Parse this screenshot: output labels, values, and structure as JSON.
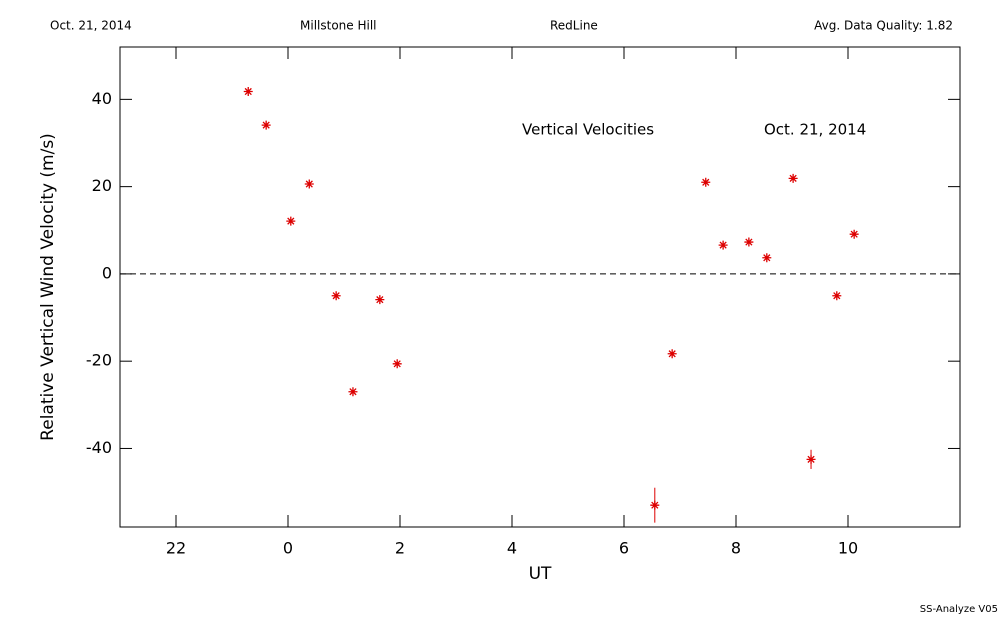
{
  "header": {
    "date": "Oct. 21, 2014",
    "site": "Millstone Hill",
    "instrument": "RedLine",
    "quality": "Avg. Data Quality: 1.82"
  },
  "footer": "SS-Analyze V05",
  "chart_data": {
    "type": "scatter",
    "xlabel": "UT",
    "ylabel": "Relative Vertical Wind Velocity (m/s)",
    "annotations": [
      "Vertical Velocities",
      "Oct. 21, 2014"
    ],
    "x": [
      -0.71,
      -0.39,
      0.05,
      0.38,
      0.86,
      1.16,
      1.64,
      1.95,
      6.55,
      6.86,
      7.46,
      7.77,
      8.23,
      8.55,
      9.02,
      9.34,
      9.8,
      10.11
    ],
    "values": [
      41.8,
      34.1,
      12.1,
      20.6,
      -5.0,
      -27.0,
      -5.9,
      -20.6,
      -53.0,
      -18.3,
      21.0,
      6.6,
      7.3,
      3.7,
      21.9,
      -42.5,
      -5.0,
      9.1
    ],
    "errors": [
      null,
      null,
      null,
      null,
      null,
      null,
      null,
      null,
      4.0,
      null,
      null,
      null,
      null,
      null,
      null,
      2.2,
      null,
      null
    ],
    "color": "#dd0000",
    "xlim": [
      -3,
      12
    ],
    "xticks": [
      {
        "value": -2,
        "label": "22"
      },
      0,
      2,
      4,
      6,
      8,
      10
    ],
    "ylim": [
      -58,
      52
    ],
    "yticks": [
      -40,
      -20,
      0,
      20,
      40
    ],
    "reference_line": 0
  }
}
